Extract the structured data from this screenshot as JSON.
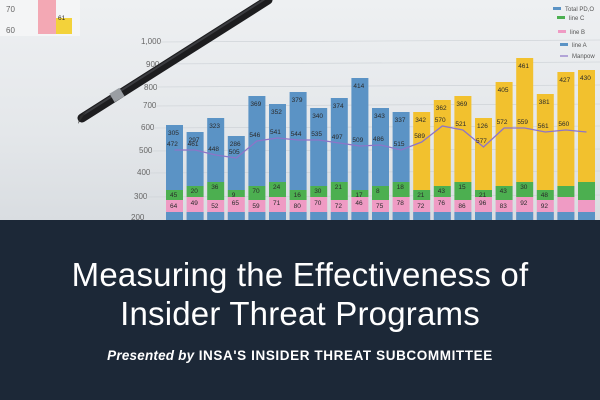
{
  "banner": {
    "title_line1": "Measuring the Effectiveness of",
    "title_line2": "Insider Threat Programs",
    "subtitle_lead": "Presented by",
    "subtitle_rest": "INSA'S INSIDER THREAT SUBCOMMITTEE"
  },
  "photo": {
    "y_axis_labels": [
      "1,000",
      "900",
      "800",
      "700",
      "600",
      "500",
      "400",
      "300",
      "200"
    ],
    "corner_labels": [
      "70",
      "60",
      "61"
    ],
    "legend_items": [
      "Total PD,O",
      "line C",
      "line B",
      "line A",
      "Manpow"
    ],
    "bar_top_values": [
      "305",
      "297",
      "323",
      "286",
      "369",
      "352",
      "379",
      "340",
      "374",
      "414",
      "343",
      "337",
      "342",
      "362",
      "369",
      "126",
      "405",
      "461",
      "381",
      "427",
      "430"
    ],
    "line_values": [
      "472",
      "461",
      "448",
      "505",
      "546",
      "541",
      "544",
      "535",
      "497",
      "509",
      "486",
      "515",
      "589",
      "570",
      "521",
      "577",
      "572",
      "559",
      "561",
      "560"
    ],
    "green_values": [
      "45",
      "20",
      "36",
      "9",
      "70",
      "24",
      "16",
      "30",
      "21",
      "17",
      "8",
      "18",
      "21",
      "43",
      "15",
      "21",
      "43",
      "30",
      "48"
    ],
    "pink_values": [
      "64",
      "49",
      "52",
      "65",
      "59",
      "71",
      "80",
      "70",
      "72",
      "46",
      "75",
      "78",
      "72",
      "76",
      "86",
      "96",
      "83",
      "92",
      "92"
    ],
    "colors": {
      "blue": "#5b93c5",
      "yellow": "#f2c12e",
      "green": "#4caf50",
      "pink": "#ef9bc4",
      "line": "#8d74c8",
      "banner": "#1c2837"
    }
  }
}
